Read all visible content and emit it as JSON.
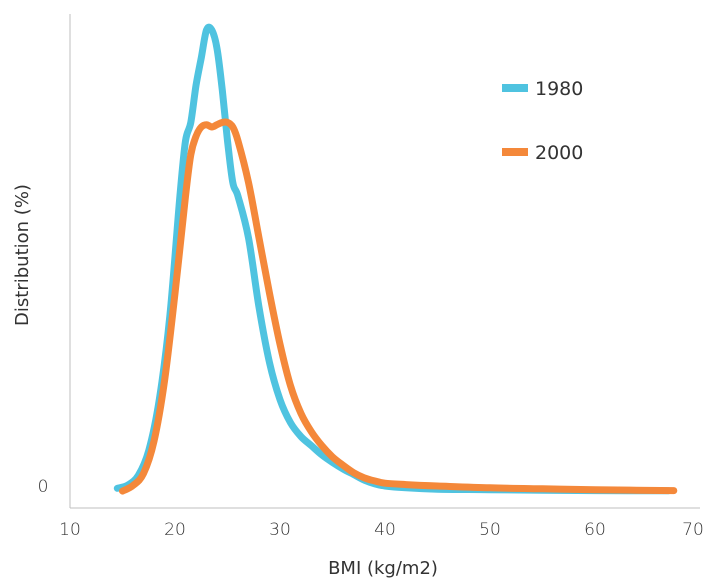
{
  "chart_data": {
    "type": "line",
    "title": "",
    "xlabel": "BMI (kg/m2)",
    "ylabel": "Distribution (%)",
    "xlim": [
      10,
      70
    ],
    "ylim": [
      0,
      100
    ],
    "x_ticks": [
      "10",
      "20",
      "30",
      "40",
      "50",
      "60",
      "70"
    ],
    "y_ticks": [
      "0"
    ],
    "grid": false,
    "legend_position": "top-right",
    "series": [
      {
        "name": "1980",
        "color": "#4fc3e0",
        "points": [
          [
            14.5,
            0.8
          ],
          [
            15.5,
            1.5
          ],
          [
            16.5,
            3.6
          ],
          [
            17.5,
            9
          ],
          [
            18.5,
            20
          ],
          [
            19.5,
            38
          ],
          [
            20.5,
            65
          ],
          [
            21,
            76
          ],
          [
            21.5,
            80
          ],
          [
            22,
            88
          ],
          [
            22.5,
            94
          ],
          [
            23,
            100
          ],
          [
            23.5,
            100
          ],
          [
            24,
            96
          ],
          [
            24.5,
            87
          ],
          [
            25,
            76
          ],
          [
            25.5,
            67
          ],
          [
            26,
            64
          ],
          [
            27,
            55
          ],
          [
            28,
            40
          ],
          [
            29,
            28
          ],
          [
            30,
            20
          ],
          [
            31,
            15
          ],
          [
            32,
            12
          ],
          [
            33,
            10
          ],
          [
            34,
            8
          ],
          [
            35,
            6.4
          ],
          [
            36,
            5
          ],
          [
            37,
            3.8
          ],
          [
            38,
            2.6
          ],
          [
            39,
            1.8
          ],
          [
            40,
            1.3
          ],
          [
            42,
            0.9
          ],
          [
            45,
            0.6
          ],
          [
            50,
            0.5
          ],
          [
            55,
            0.4
          ],
          [
            60,
            0.3
          ],
          [
            67,
            0.25
          ]
        ]
      },
      {
        "name": "2000",
        "color": "#f4883a",
        "points": [
          [
            15,
            0.2
          ],
          [
            16,
            1.4
          ],
          [
            17,
            4
          ],
          [
            18,
            11
          ],
          [
            19,
            24
          ],
          [
            20,
            43
          ],
          [
            21,
            64
          ],
          [
            21.5,
            73
          ],
          [
            22,
            77
          ],
          [
            22.5,
            79
          ],
          [
            23,
            79.5
          ],
          [
            23.5,
            79
          ],
          [
            24,
            79.5
          ],
          [
            24.5,
            80
          ],
          [
            25,
            80
          ],
          [
            25.5,
            79
          ],
          [
            26,
            76
          ],
          [
            27,
            67
          ],
          [
            28,
            55
          ],
          [
            29,
            43
          ],
          [
            30,
            32
          ],
          [
            31,
            23
          ],
          [
            32,
            17
          ],
          [
            33,
            13
          ],
          [
            34,
            10
          ],
          [
            35,
            7.6
          ],
          [
            36,
            5.8
          ],
          [
            37,
            4.2
          ],
          [
            38,
            3.1
          ],
          [
            39,
            2.4
          ],
          [
            40,
            1.9
          ],
          [
            42,
            1.6
          ],
          [
            45,
            1.3
          ],
          [
            50,
            0.9
          ],
          [
            55,
            0.7
          ],
          [
            60,
            0.5
          ],
          [
            67.5,
            0.3
          ]
        ]
      }
    ]
  }
}
